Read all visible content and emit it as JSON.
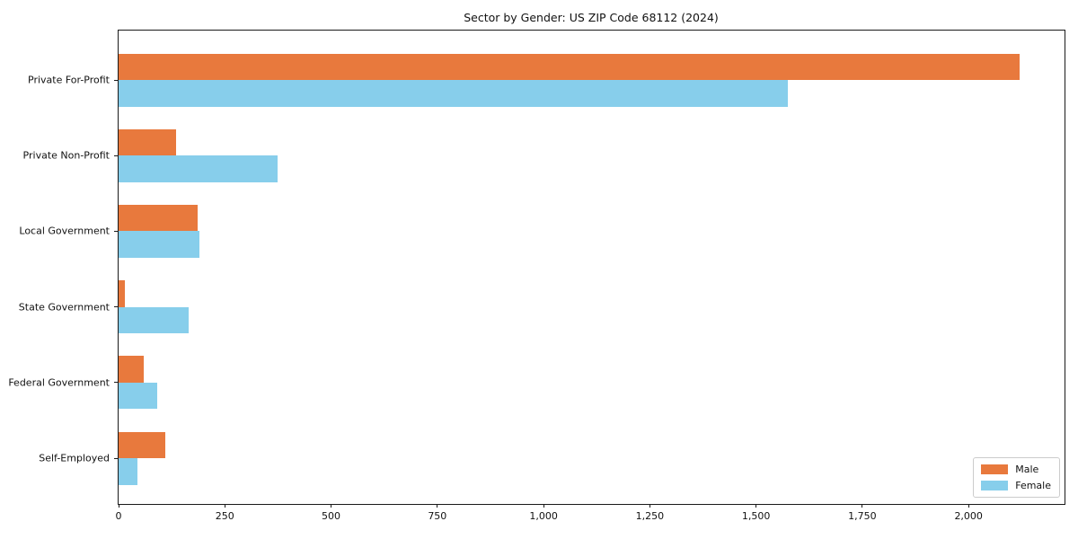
{
  "chart_data": {
    "type": "bar",
    "orientation": "horizontal",
    "title": "Sector by Gender: US ZIP Code 68112 (2024)",
    "categories": [
      "Private For-Profit",
      "Private Non-Profit",
      "Local Government",
      "State Government",
      "Federal Government",
      "Self-Employed"
    ],
    "series": [
      {
        "name": "Male",
        "color": "#e8793d",
        "values": [
          2120,
          135,
          185,
          15,
          60,
          110
        ]
      },
      {
        "name": "Female",
        "color": "#87ceeb",
        "values": [
          1575,
          375,
          190,
          165,
          90,
          45
        ]
      }
    ],
    "xlabel": "",
    "ylabel": "",
    "xlim": [
      0,
      2230
    ],
    "xticks": {
      "values": [
        0,
        250,
        500,
        750,
        1000,
        1250,
        1500,
        1750,
        2000
      ],
      "labels": [
        "0",
        "250",
        "500",
        "750",
        "1,000",
        "1,250",
        "1,500",
        "1,750",
        "2,000"
      ]
    },
    "grid": false,
    "legend_position": "lower right"
  }
}
